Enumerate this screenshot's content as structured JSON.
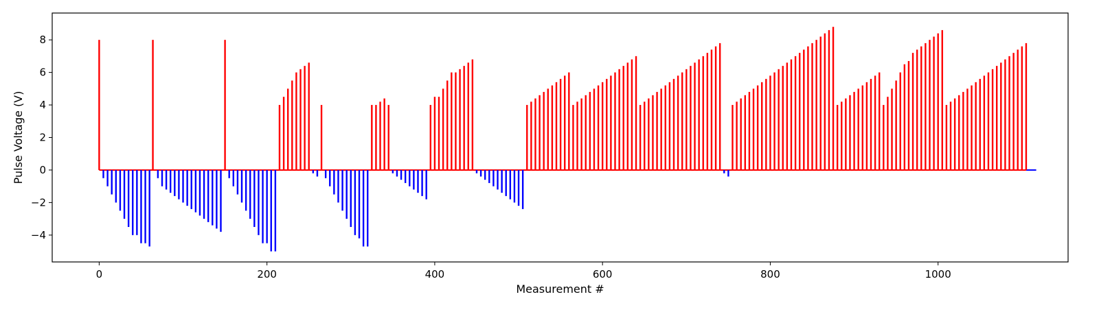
{
  "chart_data": {
    "type": "bar",
    "title": "",
    "xlabel": "Measurement #",
    "ylabel": "Pulse Voltage (V)",
    "xlim": [
      -56,
      1155
    ],
    "ylim": [
      -5.65,
      9.65
    ],
    "xticks": [
      0,
      200,
      400,
      600,
      800,
      1000
    ],
    "yticks": [
      -4,
      -2,
      0,
      2,
      4,
      6,
      8
    ],
    "grid": false,
    "legend": null,
    "colors": {
      "positive": "#ff0000",
      "negative": "#0000ff",
      "baseline_tail": "#0000ff"
    },
    "series": [
      {
        "color": "#ff0000",
        "points": [
          [
            0,
            8
          ],
          [
            64,
            8
          ],
          [
            150,
            8
          ],
          [
            215,
            4
          ],
          [
            220,
            4.5
          ],
          [
            225,
            5
          ],
          [
            230,
            5.5
          ],
          [
            235,
            6
          ],
          [
            240,
            6.2
          ],
          [
            245,
            6.4
          ],
          [
            250,
            6.6
          ],
          [
            265,
            4
          ],
          [
            325,
            4
          ],
          [
            330,
            4
          ],
          [
            335,
            4.2
          ],
          [
            340,
            4.4
          ],
          [
            345,
            4
          ],
          [
            395,
            4
          ],
          [
            400,
            4.5
          ],
          [
            405,
            4.5
          ],
          [
            410,
            5
          ],
          [
            415,
            5.5
          ],
          [
            420,
            6
          ],
          [
            425,
            6
          ],
          [
            430,
            6.2
          ],
          [
            435,
            6.4
          ],
          [
            440,
            6.6
          ],
          [
            445,
            6.8
          ],
          [
            510,
            4
          ],
          [
            515,
            4.2
          ],
          [
            520,
            4.4
          ],
          [
            525,
            4.6
          ],
          [
            530,
            4.8
          ],
          [
            535,
            5
          ],
          [
            540,
            5.2
          ],
          [
            545,
            5.4
          ],
          [
            550,
            5.6
          ],
          [
            555,
            5.8
          ],
          [
            560,
            6
          ],
          [
            565,
            4
          ],
          [
            570,
            4.2
          ],
          [
            575,
            4.4
          ],
          [
            580,
            4.6
          ],
          [
            585,
            4.8
          ],
          [
            590,
            5
          ],
          [
            595,
            5.2
          ],
          [
            600,
            5.4
          ],
          [
            605,
            5.6
          ],
          [
            610,
            5.8
          ],
          [
            615,
            6
          ],
          [
            620,
            6.2
          ],
          [
            625,
            6.4
          ],
          [
            630,
            6.6
          ],
          [
            635,
            6.8
          ],
          [
            640,
            7
          ],
          [
            645,
            4
          ],
          [
            650,
            4.2
          ],
          [
            655,
            4.4
          ],
          [
            660,
            4.6
          ],
          [
            665,
            4.8
          ],
          [
            670,
            5
          ],
          [
            675,
            5.2
          ],
          [
            680,
            5.4
          ],
          [
            685,
            5.6
          ],
          [
            690,
            5.8
          ],
          [
            695,
            6
          ],
          [
            700,
            6.2
          ],
          [
            705,
            6.4
          ],
          [
            710,
            6.6
          ],
          [
            715,
            6.8
          ],
          [
            720,
            7
          ],
          [
            725,
            7.2
          ],
          [
            730,
            7.4
          ],
          [
            735,
            7.6
          ],
          [
            740,
            7.8
          ],
          [
            755,
            4
          ],
          [
            760,
            4.2
          ],
          [
            765,
            4.4
          ],
          [
            770,
            4.6
          ],
          [
            775,
            4.8
          ],
          [
            780,
            5
          ],
          [
            785,
            5.2
          ],
          [
            790,
            5.4
          ],
          [
            795,
            5.6
          ],
          [
            800,
            5.8
          ],
          [
            805,
            6
          ],
          [
            810,
            6.2
          ],
          [
            815,
            6.4
          ],
          [
            820,
            6.6
          ],
          [
            825,
            6.8
          ],
          [
            830,
            7
          ],
          [
            835,
            7.2
          ],
          [
            840,
            7.4
          ],
          [
            845,
            7.6
          ],
          [
            850,
            7.8
          ],
          [
            855,
            8
          ],
          [
            860,
            8.2
          ],
          [
            865,
            8.4
          ],
          [
            870,
            8.6
          ],
          [
            875,
            8.8
          ],
          [
            880,
            4
          ],
          [
            885,
            4.2
          ],
          [
            890,
            4.4
          ],
          [
            895,
            4.6
          ],
          [
            900,
            4.8
          ],
          [
            905,
            5
          ],
          [
            910,
            5.2
          ],
          [
            915,
            5.4
          ],
          [
            920,
            5.6
          ],
          [
            925,
            5.8
          ],
          [
            930,
            6
          ],
          [
            935,
            4
          ],
          [
            940,
            4.5
          ],
          [
            945,
            5
          ],
          [
            950,
            5.5
          ],
          [
            955,
            6
          ],
          [
            960,
            6.5
          ],
          [
            965,
            6.7
          ],
          [
            970,
            7.2
          ],
          [
            975,
            7.4
          ],
          [
            980,
            7.6
          ],
          [
            985,
            7.8
          ],
          [
            990,
            8
          ],
          [
            995,
            8.2
          ],
          [
            1000,
            8.4
          ],
          [
            1005,
            8.6
          ],
          [
            1010,
            4
          ],
          [
            1015,
            4.2
          ],
          [
            1020,
            4.4
          ],
          [
            1025,
            4.6
          ],
          [
            1030,
            4.8
          ],
          [
            1035,
            5
          ],
          [
            1040,
            5.2
          ],
          [
            1045,
            5.4
          ],
          [
            1050,
            5.6
          ],
          [
            1055,
            5.8
          ],
          [
            1060,
            6
          ],
          [
            1065,
            6.2
          ],
          [
            1070,
            6.4
          ],
          [
            1075,
            6.6
          ],
          [
            1080,
            6.8
          ],
          [
            1085,
            7
          ],
          [
            1090,
            7.2
          ],
          [
            1095,
            7.4
          ],
          [
            1100,
            7.6
          ],
          [
            1105,
            7.8
          ]
        ]
      },
      {
        "color": "#0000ff",
        "points": [
          [
            5,
            -0.5
          ],
          [
            10,
            -1
          ],
          [
            15,
            -1.5
          ],
          [
            20,
            -2
          ],
          [
            25,
            -2.5
          ],
          [
            30,
            -3
          ],
          [
            35,
            -3.5
          ],
          [
            40,
            -4
          ],
          [
            45,
            -4
          ],
          [
            50,
            -4.5
          ],
          [
            55,
            -4.5
          ],
          [
            60,
            -4.7
          ],
          [
            70,
            -0.5
          ],
          [
            75,
            -1
          ],
          [
            80,
            -1.2
          ],
          [
            85,
            -1.4
          ],
          [
            90,
            -1.6
          ],
          [
            95,
            -1.8
          ],
          [
            100,
            -2
          ],
          [
            105,
            -2.2
          ],
          [
            110,
            -2.4
          ],
          [
            115,
            -2.6
          ],
          [
            120,
            -2.8
          ],
          [
            125,
            -3
          ],
          [
            130,
            -3.2
          ],
          [
            135,
            -3.4
          ],
          [
            140,
            -3.6
          ],
          [
            145,
            -3.8
          ],
          [
            155,
            -0.5
          ],
          [
            160,
            -1
          ],
          [
            165,
            -1.5
          ],
          [
            170,
            -2
          ],
          [
            175,
            -2.5
          ],
          [
            180,
            -3
          ],
          [
            185,
            -3.5
          ],
          [
            190,
            -4
          ],
          [
            195,
            -4.5
          ],
          [
            200,
            -4.5
          ],
          [
            205,
            -5
          ],
          [
            210,
            -5
          ],
          [
            255,
            -0.2
          ],
          [
            260,
            -0.4
          ],
          [
            270,
            -0.5
          ],
          [
            275,
            -1
          ],
          [
            280,
            -1.5
          ],
          [
            285,
            -2
          ],
          [
            290,
            -2.5
          ],
          [
            295,
            -3
          ],
          [
            300,
            -3.5
          ],
          [
            305,
            -4
          ],
          [
            310,
            -4.2
          ],
          [
            315,
            -4.7
          ],
          [
            320,
            -4.7
          ],
          [
            350,
            -0.2
          ],
          [
            355,
            -0.4
          ],
          [
            360,
            -0.6
          ],
          [
            365,
            -0.8
          ],
          [
            370,
            -1
          ],
          [
            375,
            -1.2
          ],
          [
            380,
            -1.4
          ],
          [
            385,
            -1.6
          ],
          [
            390,
            -1.8
          ],
          [
            450,
            -0.2
          ],
          [
            455,
            -0.4
          ],
          [
            460,
            -0.6
          ],
          [
            465,
            -0.8
          ],
          [
            470,
            -1
          ],
          [
            475,
            -1.2
          ],
          [
            480,
            -1.4
          ],
          [
            485,
            -1.6
          ],
          [
            490,
            -1.8
          ],
          [
            495,
            -2
          ],
          [
            500,
            -2.2
          ],
          [
            505,
            -2.4
          ],
          [
            745,
            -0.2
          ],
          [
            750,
            -0.4
          ]
        ]
      }
    ]
  }
}
